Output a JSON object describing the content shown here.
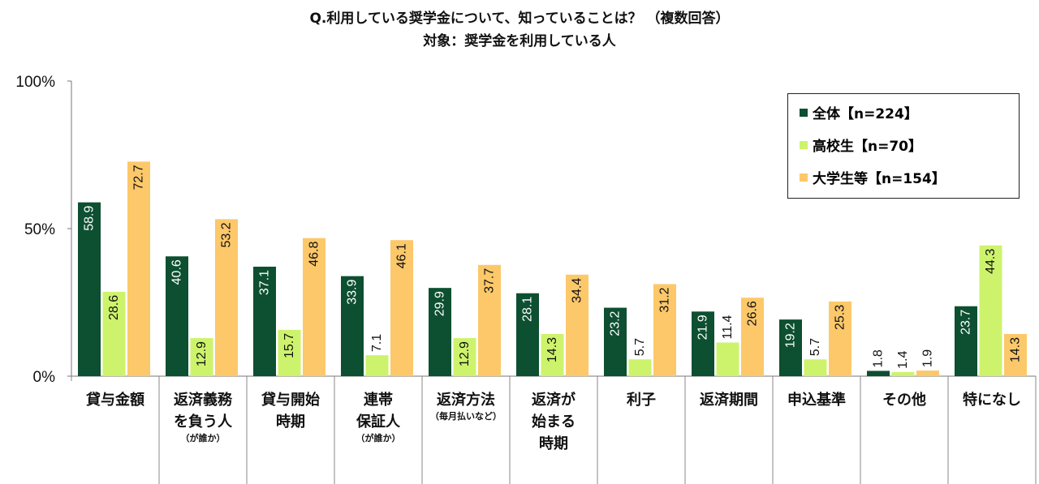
{
  "chart_data": {
    "type": "bar",
    "title": "Q.利用している奨学金について、知っていることは？ （複数回答）",
    "subtitle": "対象：奨学金を利用している人",
    "ylim": [
      0,
      100
    ],
    "yticks": [
      "0%",
      "50%",
      "100%"
    ],
    "categories": [
      {
        "label": "貸与金額",
        "note": ""
      },
      {
        "label": "返済義務\nを負う人",
        "note": "（が誰か）"
      },
      {
        "label": "貸与開始\n時期",
        "note": ""
      },
      {
        "label": "連帯\n保証人",
        "note": "（が誰か）"
      },
      {
        "label": "返済方法",
        "note": "（毎月払いなど）"
      },
      {
        "label": "返済が\n始まる\n時期",
        "note": ""
      },
      {
        "label": "利子",
        "note": ""
      },
      {
        "label": "返済期間",
        "note": ""
      },
      {
        "label": "申込基準",
        "note": ""
      },
      {
        "label": "その他",
        "note": ""
      },
      {
        "label": "特になし",
        "note": ""
      }
    ],
    "series": [
      {
        "name": "全体【n=224】",
        "color": "#0d4f31",
        "labelColor": "#ffffff",
        "values": [
          58.9,
          40.6,
          37.1,
          33.9,
          29.9,
          28.1,
          23.2,
          21.9,
          19.2,
          1.8,
          23.7
        ]
      },
      {
        "name": "高校生【n=70】",
        "color": "#cdf36c",
        "labelColor": "#111111",
        "values": [
          28.6,
          12.9,
          15.7,
          7.1,
          12.9,
          14.3,
          5.7,
          11.4,
          5.7,
          1.4,
          44.3
        ]
      },
      {
        "name": "大学生等【n=154】",
        "color": "#fcc86a",
        "labelColor": "#111111",
        "values": [
          72.7,
          53.2,
          46.8,
          46.1,
          37.7,
          34.4,
          31.2,
          26.6,
          25.3,
          1.9,
          14.3
        ]
      }
    ],
    "legend": "top-right"
  }
}
